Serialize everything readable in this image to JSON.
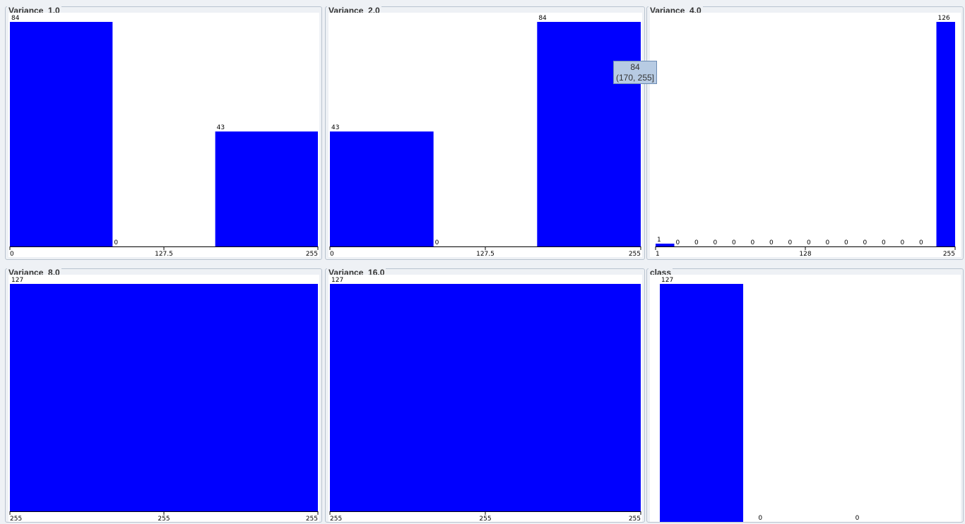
{
  "chart_data": [
    {
      "type": "bar",
      "title": "Variance_1.0",
      "bars": [
        {
          "x0": 0,
          "x1": 85,
          "value": 84
        },
        {
          "x0": 85,
          "x1": 170,
          "value": 0
        },
        {
          "x0": 170,
          "x1": 255,
          "value": 43
        }
      ],
      "xticks": [
        "0",
        "127.5",
        "255"
      ],
      "xlim": [
        0,
        255
      ],
      "ylim": [
        0,
        84
      ]
    },
    {
      "type": "bar",
      "title": "Variance_2.0",
      "bars": [
        {
          "x0": 0,
          "x1": 85,
          "value": 43
        },
        {
          "x0": 85,
          "x1": 170,
          "value": 0
        },
        {
          "x0": 170,
          "x1": 255,
          "value": 84
        }
      ],
      "xticks": [
        "0",
        "127.5",
        "255"
      ],
      "xlim": [
        0,
        255
      ],
      "ylim": [
        0,
        84
      ]
    },
    {
      "type": "bar",
      "title": "Variance_4.0",
      "bars": [
        {
          "x0": 1,
          "x1": 16.88,
          "value": 1
        },
        {
          "x0": 16.88,
          "x1": 32.75,
          "value": 0
        },
        {
          "x0": 32.75,
          "x1": 48.63,
          "value": 0
        },
        {
          "x0": 48.63,
          "x1": 64.5,
          "value": 0
        },
        {
          "x0": 64.5,
          "x1": 80.38,
          "value": 0
        },
        {
          "x0": 80.38,
          "x1": 96.25,
          "value": 0
        },
        {
          "x0": 96.25,
          "x1": 112.13,
          "value": 0
        },
        {
          "x0": 112.13,
          "x1": 128,
          "value": 0
        },
        {
          "x0": 128,
          "x1": 143.88,
          "value": 0
        },
        {
          "x0": 143.88,
          "x1": 159.75,
          "value": 0
        },
        {
          "x0": 159.75,
          "x1": 175.63,
          "value": 0
        },
        {
          "x0": 175.63,
          "x1": 191.5,
          "value": 0
        },
        {
          "x0": 191.5,
          "x1": 207.38,
          "value": 0
        },
        {
          "x0": 207.38,
          "x1": 223.25,
          "value": 0
        },
        {
          "x0": 223.25,
          "x1": 239.13,
          "value": 0
        },
        {
          "x0": 239.13,
          "x1": 255,
          "value": 126
        }
      ],
      "xticks": [
        "1",
        "128",
        "255"
      ],
      "xlim": [
        1,
        255
      ],
      "ylim": [
        0,
        126
      ]
    },
    {
      "type": "bar",
      "title": "Variance_8.0",
      "bars": [
        {
          "x0": 0,
          "x1": 1,
          "value": 127
        }
      ],
      "xticks": [
        "255",
        "255",
        "255"
      ],
      "xlim": [
        0,
        1
      ],
      "ylim": [
        0,
        127
      ]
    },
    {
      "type": "bar",
      "title": "Variance_16.0",
      "bars": [
        {
          "x0": 0,
          "x1": 1,
          "value": 127
        }
      ],
      "xticks": [
        "255",
        "255",
        "255"
      ],
      "xlim": [
        0,
        1
      ],
      "ylim": [
        0,
        127
      ]
    },
    {
      "type": "bar",
      "title": "class",
      "bars": [
        {
          "x0": 0,
          "x1": 1,
          "value": 127
        },
        {
          "x0": 1,
          "x1": 2,
          "value": 0
        },
        {
          "x0": 2,
          "x1": 3,
          "value": 0
        }
      ],
      "xticks": [],
      "xlim": [
        0,
        3
      ],
      "ylim": [
        0,
        127
      ]
    }
  ],
  "tooltip": {
    "count": "84",
    "range": "(170, 255]"
  },
  "colors": {
    "bar": "#0000ff",
    "plot_background": "#ffffff",
    "panel_background": "#eef1f5"
  }
}
